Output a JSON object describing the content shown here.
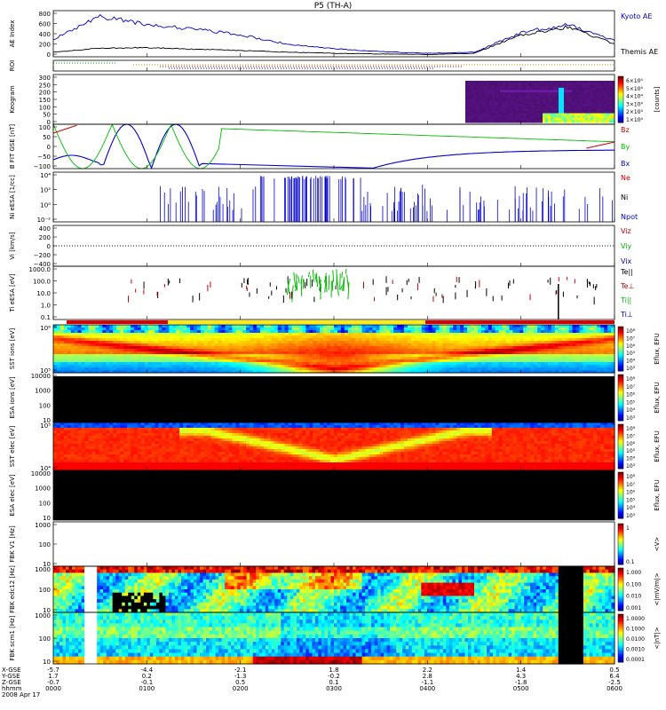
{
  "title": "P5 (TH-A)",
  "date_label": "2008 Apr 17",
  "time_axis": {
    "row_labels": [
      "X-GSE",
      "Y-GSE",
      "Z-GSE",
      "hhmm"
    ],
    "ticks": [
      {
        "x": "-5.7",
        "y": "1.7",
        "z": "-0.7",
        "t": "0000"
      },
      {
        "x": "-4.4",
        "y": "0.2",
        "z": "-0.1",
        "t": "0100"
      },
      {
        "x": "-2.1",
        "y": "-1.3",
        "z": "0.5",
        "t": "0200"
      },
      {
        "x": "1.8",
        "y": "-0.2",
        "z": "0.1",
        "t": "0300"
      },
      {
        "x": "2.2",
        "y": "2.8",
        "z": "-1.1",
        "t": "0400"
      },
      {
        "x": "1.4",
        "y": "4.3",
        "z": "-1.8",
        "t": "0500"
      },
      {
        "x": "0.5",
        "y": "6.4",
        "z": "-2.5",
        "t": "0600"
      }
    ]
  },
  "panels": {
    "ae": {
      "ylabel": "AE Index",
      "ticks": [
        "800",
        "600",
        "400",
        "200",
        "0"
      ],
      "legend": [
        {
          "text": "Kyoto AE",
          "color": "#0000cc"
        },
        {
          "text": "Themis AE",
          "color": "#000000"
        }
      ]
    },
    "roi": {
      "ylabel": "ROI"
    },
    "keogram": {
      "ylabel": "Keogram",
      "ticks": [
        "300",
        "250",
        "200",
        "150",
        "100",
        "50",
        "0"
      ],
      "cbar_ticks": [
        "6×10⁴",
        "5×10⁴",
        "4×10⁴",
        "3×10⁴",
        "2×10⁴",
        "1×10⁴"
      ],
      "cbar_label": "[counts]"
    },
    "bfield": {
      "ylabel": "B FIT GSE [nT]",
      "ticks": [
        "100",
        "50",
        "0",
        "−50",
        "−100"
      ],
      "legend": [
        {
          "text": "Bz",
          "color": "#cc0000"
        },
        {
          "text": "By",
          "color": "#00bb00"
        },
        {
          "text": "Bx",
          "color": "#0000cc"
        }
      ]
    },
    "density": {
      "ylabel": "Ni eESA [1/cc]",
      "ticks": [
        "10⁴",
        "10²",
        "10⁰",
        "10⁻²"
      ],
      "legend": [
        {
          "text": "Ne",
          "color": "#cc0000"
        },
        {
          "text": "Ni",
          "color": "#000000"
        },
        {
          "text": "Npot",
          "color": "#0000cc"
        }
      ]
    },
    "velocity": {
      "ylabel": "Vi [km/s]",
      "ticks": [
        "400",
        "200",
        "0",
        "−200",
        "−400"
      ],
      "legend": [
        {
          "text": "Viz",
          "color": "#cc0000"
        },
        {
          "text": "Viy",
          "color": "#00bb00"
        },
        {
          "text": "Vix",
          "color": "#0000cc"
        }
      ]
    },
    "temp": {
      "ylabel": "Ti eESA [eV]",
      "ticks": [
        "1000.0",
        "100.0",
        "10.0",
        "1.0",
        "0.1"
      ],
      "legend": [
        {
          "text": "Te||",
          "color": "#000000"
        },
        {
          "text": "Te⊥",
          "color": "#cc0000"
        },
        {
          "text": "Ti||",
          "color": "#00bb00"
        },
        {
          "text": "Ti⊥",
          "color": "#0000cc"
        }
      ]
    },
    "sst_i": {
      "ylabel": "SST ions [eV]",
      "ticks": [
        "10⁶",
        "10⁵"
      ],
      "cbar_label": "Eflux, EFU",
      "cbar_ticks": [
        "10⁸",
        "10⁷",
        "10⁶",
        "10⁵",
        "10⁴",
        "10³"
      ]
    },
    "esa_i": {
      "ylabel": "ESA ions [eV]",
      "ticks": [
        "10000",
        "1000",
        "100",
        "10"
      ],
      "cbar_label": "Eflux, EFU",
      "cbar_ticks": [
        "10⁸",
        "10⁷",
        "10⁶",
        "10⁵",
        "10⁴",
        "10³"
      ]
    },
    "sst_e": {
      "ylabel": "SST elec [eV]",
      "ticks": [
        "10⁵",
        "10⁴"
      ],
      "cbar_label": "Eflux, EFU",
      "cbar_ticks": [
        "10⁸",
        "10⁷",
        "10⁶",
        "10⁵",
        "10⁴",
        "10³"
      ]
    },
    "esa_e": {
      "ylabel": "ESA elec [eV]",
      "ticks": [
        "10000",
        "1000",
        "100",
        "10"
      ],
      "cbar_label": "Eflux, EFU",
      "cbar_ticks": [
        "10⁸",
        "10⁷",
        "10⁶",
        "10⁵",
        "10⁴",
        "10³"
      ]
    },
    "fbk_v1": {
      "ylabel": "FBK V1 [Hz]",
      "ticks": [
        "1000",
        "100",
        "10"
      ],
      "cbar_label": "<V>",
      "cbar_ticks": [
        "1",
        "0.1"
      ]
    },
    "fbk_e12": {
      "ylabel": "FBK edc12 [Hz]",
      "ticks": [
        "1000",
        "100",
        "10"
      ],
      "cbar_label": "<|mV/m|>",
      "cbar_ticks": [
        "1.000",
        "0.100",
        "0.010",
        "0.001"
      ]
    },
    "fbk_scm": {
      "ylabel": "FBK scm1 [Hz]",
      "ticks": [
        "1000",
        "100",
        "10"
      ],
      "cbar_label": "<|nT|>",
      "cbar_ticks": [
        "1.0000",
        "0.1000",
        "0.0100",
        "0.0010",
        "0.0001"
      ]
    }
  },
  "chart_data": {
    "type": "line",
    "title": "P5 (TH-A)",
    "x_hours": [
      0,
      0.5,
      1,
      1.5,
      2,
      2.5,
      3,
      3.5,
      4,
      4.5,
      5,
      5.5,
      6
    ],
    "series": [
      {
        "name": "Kyoto AE",
        "values": [
          300,
          700,
          560,
          480,
          380,
          220,
          140,
          90,
          60,
          80,
          420,
          560,
          280
        ]
      },
      {
        "name": "Themis AE",
        "values": [
          80,
          150,
          160,
          130,
          110,
          80,
          60,
          50,
          40,
          60,
          380,
          520,
          220
        ]
      }
    ],
    "ae_ylim": [
      0,
      800
    ],
    "xlim": [
      "0000",
      "0600"
    ]
  }
}
